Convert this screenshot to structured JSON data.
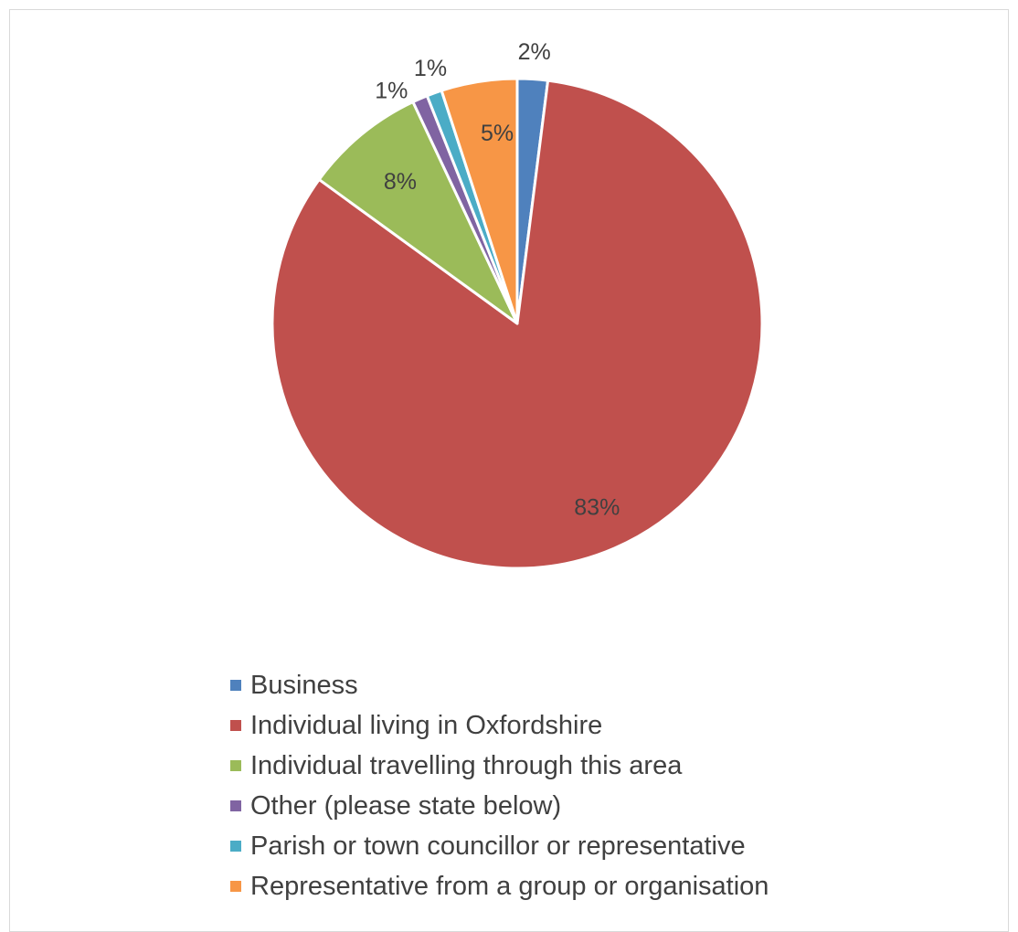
{
  "chart_data": {
    "type": "pie",
    "title": "",
    "categories": [
      "Business",
      "Individual living in Oxfordshire",
      "Individual travelling through this area",
      "Other (please state below)",
      "Parish or town councillor or representative",
      "Representative from a group or organisation"
    ],
    "values": [
      2,
      83,
      8,
      1,
      1,
      5
    ],
    "value_labels": [
      "2%",
      "83%",
      "8%",
      "1%",
      "1%",
      "5%"
    ],
    "colors": [
      "#4f81bd",
      "#c0504d",
      "#9bbb59",
      "#8064a2",
      "#4bacc6",
      "#f79646"
    ],
    "start_angle_deg": 0,
    "direction": "clockwise",
    "legend_position": "bottom",
    "legend": [
      {
        "label": "Business",
        "color": "#4f81bd"
      },
      {
        "label": "Individual living in Oxfordshire",
        "color": "#c0504d"
      },
      {
        "label": "Individual travelling through this area",
        "color": "#9bbb59"
      },
      {
        "label": "Other (please state below)",
        "color": "#8064a2"
      },
      {
        "label": "Parish or town councillor or representative",
        "color": "#4bacc6"
      },
      {
        "label": "Representative from a group or organisation",
        "color": "#f79646"
      }
    ]
  }
}
